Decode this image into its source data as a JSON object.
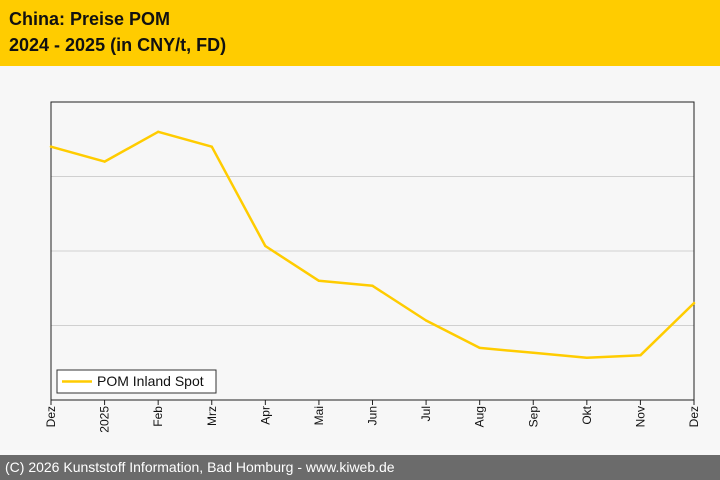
{
  "header": {
    "title_line1": "China: Preise POM",
    "title_line2": "2024 - 2025 (in CNY/t, FD)"
  },
  "footer": {
    "copyright": "(C) 2026 Kunststoff Information, Bad Homburg - www.kiweb.de"
  },
  "colors": {
    "brand_yellow": "#ffcc00",
    "series_line": "#ffcc00",
    "footer_bg": "#6b6b6b"
  },
  "chart_data": {
    "type": "line",
    "title": "",
    "xlabel": "",
    "ylabel": "",
    "x": [
      "Dez",
      "2025",
      "Feb",
      "Mrz",
      "Apr",
      "Mai",
      "Jun",
      "Jul",
      "Aug",
      "Sep",
      "Okt",
      "Nov",
      "Dez"
    ],
    "series": [
      {
        "name": "POM Inland Spot",
        "values": [
          0.87,
          0.81,
          0.93,
          0.87,
          0.47,
          0.33,
          0.31,
          0.17,
          0.06,
          0.04,
          0.02,
          0.03,
          0.24
        ]
      }
    ],
    "y_scale": "relative (no tick values printed)",
    "ylim": [
      -0.15,
      1.05
    ],
    "grid": "horizontal",
    "legend": "bottom-left"
  }
}
